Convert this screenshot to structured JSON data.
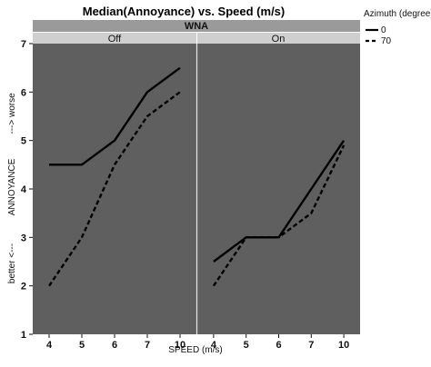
{
  "chart_data": {
    "type": "line",
    "title": "Median(Annoyance) vs. Speed (m/s)",
    "facet_group_label": "WNA",
    "panels": [
      {
        "label": "Off",
        "x": [
          4,
          5,
          6,
          7,
          10
        ],
        "series": [
          {
            "name": "0",
            "style": "solid",
            "values": [
              4.5,
              4.5,
              5.0,
              6.0,
              6.5
            ]
          },
          {
            "name": "70",
            "style": "dashed",
            "values": [
              2.0,
              3.0,
              4.5,
              5.5,
              6.0
            ]
          }
        ]
      },
      {
        "label": "On",
        "x": [
          4,
          5,
          6,
          7,
          10
        ],
        "series": [
          {
            "name": "0",
            "style": "solid",
            "values": [
              2.5,
              3.0,
              3.0,
              4.0,
              5.0
            ]
          },
          {
            "name": "70",
            "style": "dashed",
            "values": [
              2.0,
              3.0,
              3.0,
              3.5,
              4.9
            ]
          }
        ]
      }
    ],
    "x_tick_labels": [
      "4",
      "5",
      "6",
      "7",
      "10"
    ],
    "xlabel": "SPEED (m/s)",
    "ylabel": "ANNOYANCE",
    "ylabel_top": "---> worse",
    "ylabel_bottom": "better <---",
    "ylim": [
      1,
      7
    ],
    "yticks": [
      1,
      2,
      3,
      4,
      5,
      6,
      7
    ],
    "legend": {
      "title": "Azimuth (degree)",
      "placement": "top-right",
      "entries": [
        {
          "label": "0",
          "style": "solid"
        },
        {
          "label": "70",
          "style": "dashed"
        }
      ]
    },
    "colors": {
      "panel_background": "#5f5f5f",
      "line": "#000000"
    }
  }
}
